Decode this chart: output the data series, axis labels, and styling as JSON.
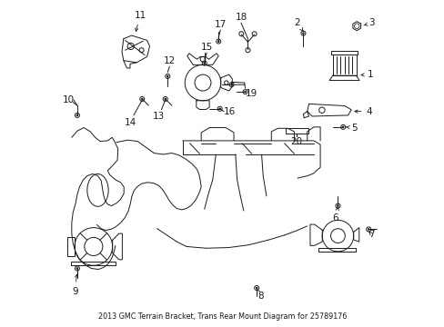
{
  "title": "2013 GMC Terrain Bracket, Trans Rear Mount Diagram for 25789176",
  "bg": "#ffffff",
  "lc": "#1a1a1a",
  "figsize": [
    4.89,
    3.6
  ],
  "dpi": 100,
  "lw": 0.7,
  "fs": 7.5,
  "labels": {
    "1": [
      0.953,
      0.77,
      "←",
      "left"
    ],
    "2": [
      0.728,
      0.93,
      "→",
      "right"
    ],
    "3": [
      0.958,
      0.932,
      "←",
      "left"
    ],
    "4": [
      0.948,
      0.66,
      "←",
      "left"
    ],
    "5": [
      0.9,
      0.598,
      "←",
      "left"
    ],
    "6": [
      0.845,
      0.325,
      "↓",
      "center"
    ],
    "7": [
      0.955,
      0.288,
      "↓",
      "center"
    ],
    "8": [
      0.618,
      0.095,
      "↓",
      "center"
    ],
    "9": [
      0.048,
      0.11,
      "↓",
      "center"
    ],
    "10": [
      0.03,
      0.68,
      "right",
      "right"
    ],
    "11": [
      0.248,
      0.952,
      "↓",
      "center"
    ],
    "12": [
      0.338,
      0.795,
      "↓",
      "center"
    ],
    "13": [
      0.305,
      0.658,
      "↓",
      "center"
    ],
    "14": [
      0.218,
      0.635,
      "↓",
      "center"
    ],
    "15": [
      0.452,
      0.838,
      "↓",
      "center"
    ],
    "16": [
      0.505,
      0.655,
      "←",
      "left"
    ],
    "17": [
      0.494,
      0.91,
      "↓",
      "center"
    ],
    "18": [
      0.557,
      0.935,
      "↓",
      "center"
    ],
    "19": [
      0.57,
      0.728,
      "↓",
      "center"
    ],
    "20": [
      0.728,
      0.582,
      "↓",
      "center"
    ]
  }
}
